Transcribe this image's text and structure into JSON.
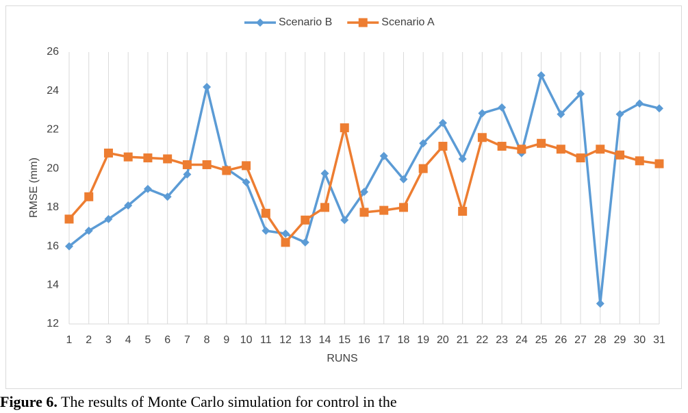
{
  "chart_data": {
    "type": "line",
    "categories": [
      "1",
      "2",
      "3",
      "4",
      "5",
      "6",
      "7",
      "8",
      "9",
      "10",
      "11",
      "12",
      "13",
      "14",
      "15",
      "16",
      "17",
      "18",
      "19",
      "20",
      "21",
      "22",
      "23",
      "24",
      "25",
      "26",
      "27",
      "28",
      "29",
      "30",
      "31"
    ],
    "xlabel": "RUNS",
    "ylabel": "RMSE (mm)",
    "ylim": [
      12,
      26
    ],
    "yticks": [
      12,
      14,
      16,
      18,
      20,
      22,
      24,
      26
    ],
    "grid": true,
    "legend": "top",
    "series": [
      {
        "name": "Scenario  B",
        "color": "#5b9bd5",
        "marker": "diamond",
        "values": [
          16.0,
          16.8,
          17.4,
          18.1,
          18.95,
          18.55,
          19.7,
          24.2,
          20.0,
          19.3,
          16.8,
          16.65,
          16.2,
          19.75,
          17.35,
          18.8,
          20.65,
          19.45,
          21.3,
          22.35,
          20.5,
          22.85,
          23.15,
          20.8,
          24.8,
          22.8,
          23.85,
          13.05,
          22.8,
          23.35,
          23.1
        ]
      },
      {
        "name": "Scenario A",
        "color": "#ed7d31",
        "marker": "square",
        "values": [
          17.4,
          18.55,
          20.8,
          20.6,
          20.55,
          20.5,
          20.2,
          20.2,
          19.9,
          20.15,
          17.7,
          16.2,
          17.35,
          18.0,
          22.1,
          17.75,
          17.85,
          18.0,
          20.0,
          21.15,
          17.8,
          21.6,
          21.15,
          21.0,
          21.3,
          21.0,
          20.55,
          21.0,
          20.7,
          20.4,
          20.25
        ]
      }
    ]
  },
  "caption": {
    "label": "Figure 6.",
    "text": "The results of Monte Carlo simulation for control in the"
  }
}
